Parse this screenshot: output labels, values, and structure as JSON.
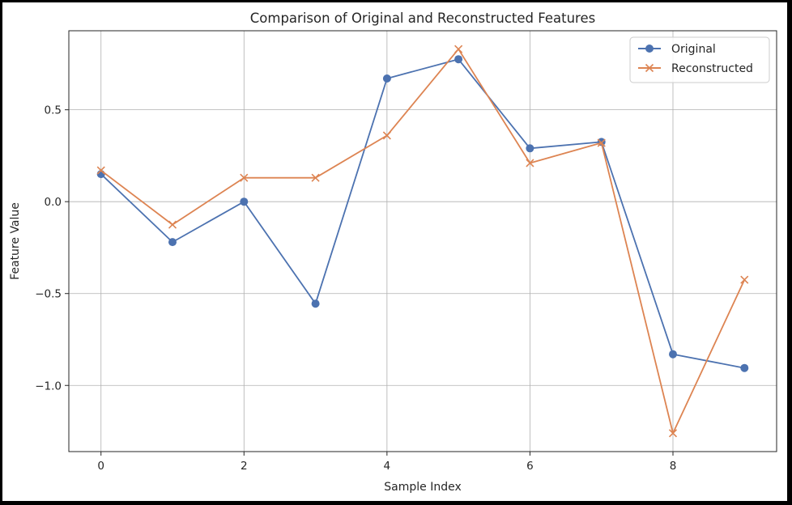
{
  "chart_data": {
    "type": "line",
    "title": "Comparison of Original and Reconstructed Features",
    "xlabel": "Sample Index",
    "ylabel": "Feature Value",
    "x": [
      0,
      1,
      2,
      3,
      4,
      5,
      6,
      7,
      8,
      9
    ],
    "xlim": [
      -0.45,
      9.45
    ],
    "ylim": [
      -1.36,
      0.93
    ],
    "xticks": [
      0,
      2,
      4,
      6,
      8
    ],
    "xtick_labels": [
      "0",
      "2",
      "4",
      "6",
      "8"
    ],
    "yticks": [
      0.5,
      0.0,
      -0.5,
      -1.0
    ],
    "ytick_labels": [
      "0.5",
      "0.0",
      "−0.5",
      "−1.0"
    ],
    "grid": true,
    "legend_position": "top-right",
    "series": [
      {
        "name": "Original",
        "color": "#4c72b0",
        "marker": "circle",
        "values": [
          0.15,
          -0.22,
          0.0,
          -0.555,
          0.67,
          0.775,
          0.29,
          0.325,
          -0.83,
          -0.905
        ]
      },
      {
        "name": "Reconstructed",
        "color": "#dd8452",
        "marker": "x",
        "values": [
          0.17,
          -0.125,
          0.13,
          0.13,
          0.36,
          0.83,
          0.21,
          0.32,
          -1.26,
          -0.425
        ]
      }
    ]
  }
}
